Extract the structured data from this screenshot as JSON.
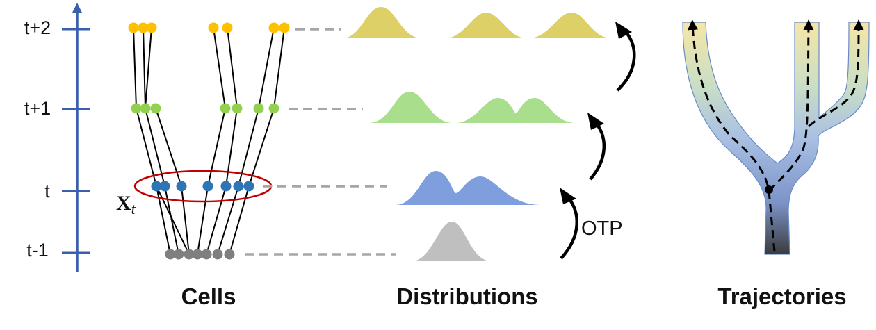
{
  "axis": {
    "ticks": [
      "t+2",
      "t+1",
      "t",
      "t-1"
    ]
  },
  "cells_label": "Cells",
  "distributions_label": "Distributions",
  "trajectories_label": "Trajectories",
  "otp_label": "OTP",
  "highlight_label": {
    "main": "X",
    "sub": "t"
  },
  "colors": {
    "axis": "#3a5fad",
    "t_minus_1": "#7f7f7f",
    "t": "#2e75b6",
    "t_plus_1": "#92d050",
    "t_plus_2": "#ffc000",
    "dist_t_minus_1": "#bfbfbf",
    "dist_t": "#7f9ede",
    "dist_t_plus_1": "#a9df8c",
    "dist_t_plus_2": "#ddd066",
    "ellipse": "#c00000",
    "dashes": "#a6a6a6"
  },
  "icons": {
    "arrows": "curved-up-arrow",
    "trajectory": "branching-tube"
  }
}
